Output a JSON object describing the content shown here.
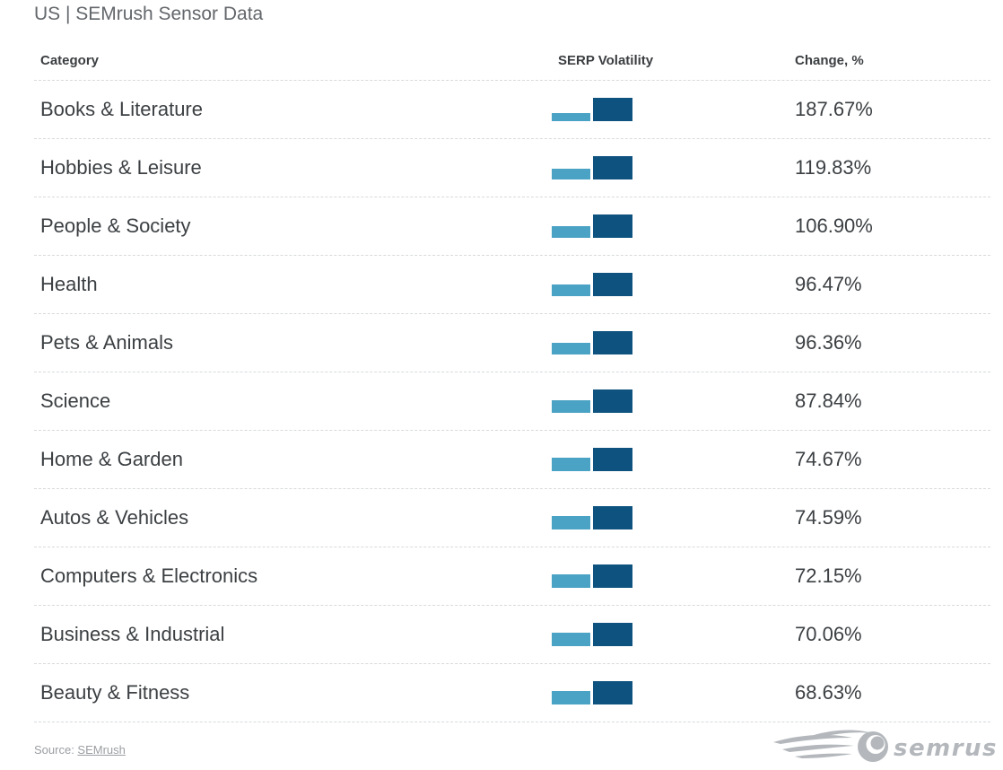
{
  "title": "US | SEMrush Sensor Data",
  "table": {
    "columns": {
      "category": "Category",
      "volatility": "SERP Volatility",
      "change": "Change, %"
    },
    "rows": [
      {
        "category": "Books & Literature",
        "change_label": "187.67%",
        "change_pct": 187.67
      },
      {
        "category": "Hobbies & Leisure",
        "change_label": "119.83%",
        "change_pct": 119.83
      },
      {
        "category": "People & Society",
        "change_label": "106.90%",
        "change_pct": 106.9
      },
      {
        "category": "Health",
        "change_label": "96.47%",
        "change_pct": 96.47
      },
      {
        "category": "Pets & Animals",
        "change_label": "96.36%",
        "change_pct": 96.36
      },
      {
        "category": "Science",
        "change_label": "87.84%",
        "change_pct": 87.84
      },
      {
        "category": "Home & Garden",
        "change_label": "74.67%",
        "change_pct": 74.67
      },
      {
        "category": "Autos & Vehicles",
        "change_label": "74.59%",
        "change_pct": 74.59
      },
      {
        "category": "Computers & Electronics",
        "change_label": "72.15%",
        "change_pct": 72.15
      },
      {
        "category": "Business & Industrial",
        "change_label": "70.06%",
        "change_pct": 70.06
      },
      {
        "category": "Beauty & Fitness",
        "change_label": "68.63%",
        "change_pct": 68.63
      }
    ]
  },
  "footer": {
    "source_prefix": "Source: ",
    "source_link": "SEMrush",
    "logo_text": "semrush"
  },
  "colors": {
    "bar_before": "#4aa2c4",
    "bar_after": "#0e527f",
    "text": "#3c4043",
    "title": "#63676b",
    "separator": "#d8dadc",
    "logo_gray": "#b4b8bc"
  },
  "chart_data": {
    "type": "table",
    "title": "US | SEMrush Sensor Data",
    "columns": [
      "Category",
      "SERP Volatility",
      "Change, %"
    ],
    "categories": [
      "Books & Literature",
      "Hobbies & Leisure",
      "People & Society",
      "Health",
      "Pets & Animals",
      "Science",
      "Home & Garden",
      "Autos & Vehicles",
      "Computers & Electronics",
      "Business & Industrial",
      "Beauty & Fitness"
    ],
    "series": [
      {
        "name": "Change, %",
        "values": [
          187.67,
          119.83,
          106.9,
          96.47,
          96.36,
          87.84,
          74.67,
          74.59,
          72.15,
          70.06,
          68.63
        ]
      }
    ],
    "row_visual": "Each row shows two mini bars: light-blue 'before' bar whose height is inversely proportional to the change (after-height / (1 + change/100)) and a fixed-height dark-blue 'after' bar",
    "legend_position": "none",
    "grid": "dashed row separators"
  }
}
